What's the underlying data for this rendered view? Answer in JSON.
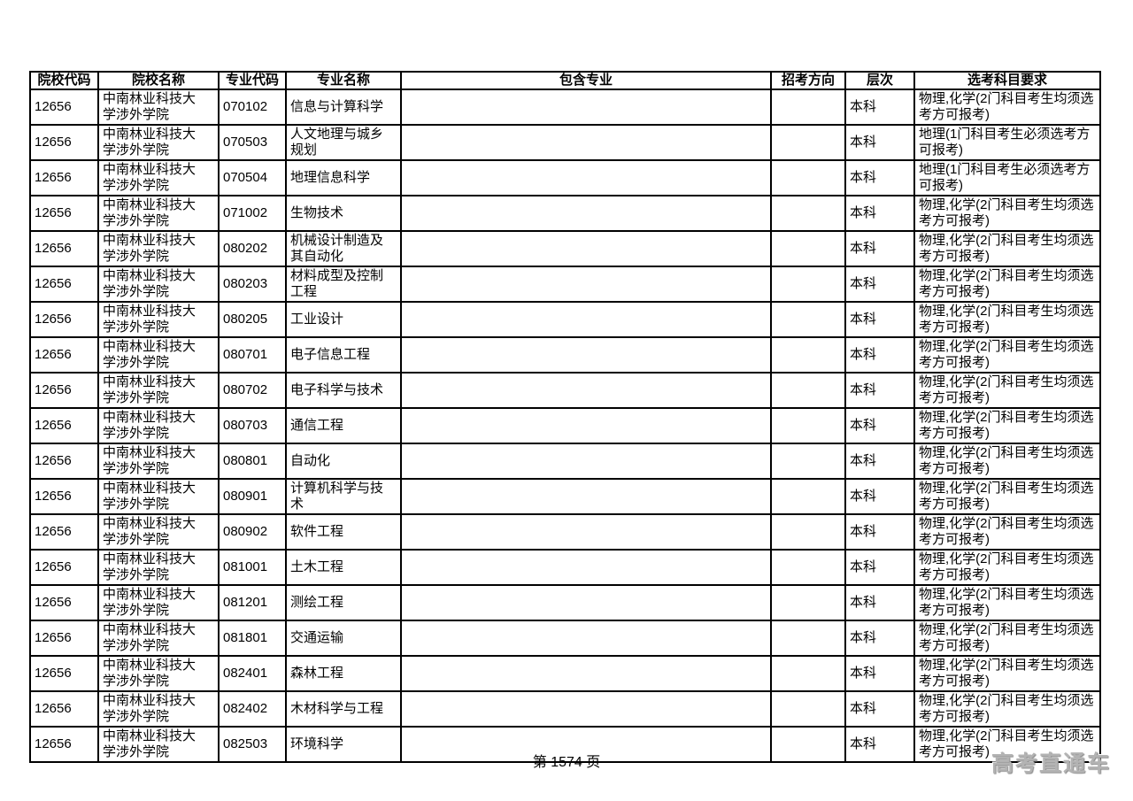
{
  "page": {
    "footer_page_label": "第 1574 页",
    "watermark": {
      "text": "高考直通车",
      "color": "#b3b3b3"
    }
  },
  "table": {
    "headers": [
      "院校代码",
      "院校名称",
      "专业代码",
      "专业名称",
      "包含专业",
      "招考方向",
      "层次",
      "选考科目要求"
    ],
    "rows": [
      {
        "college_code": "12656",
        "college_name": "中南林业科技大学涉外学院",
        "major_code": "070102",
        "major_name": "信息与计算科学",
        "included_majors": "",
        "admission_direction": "",
        "level": "本科",
        "subject_requirements": "物理,化学(2门科目考生均须选考方可报考)"
      },
      {
        "college_code": "12656",
        "college_name": "中南林业科技大学涉外学院",
        "major_code": "070503",
        "major_name": "人文地理与城乡规划",
        "included_majors": "",
        "admission_direction": "",
        "level": "本科",
        "subject_requirements": "地理(1门科目考生必须选考方可报考)"
      },
      {
        "college_code": "12656",
        "college_name": "中南林业科技大学涉外学院",
        "major_code": "070504",
        "major_name": "地理信息科学",
        "included_majors": "",
        "admission_direction": "",
        "level": "本科",
        "subject_requirements": "地理(1门科目考生必须选考方可报考)"
      },
      {
        "college_code": "12656",
        "college_name": "中南林业科技大学涉外学院",
        "major_code": "071002",
        "major_name": "生物技术",
        "included_majors": "",
        "admission_direction": "",
        "level": "本科",
        "subject_requirements": "物理,化学(2门科目考生均须选考方可报考)"
      },
      {
        "college_code": "12656",
        "college_name": "中南林业科技大学涉外学院",
        "major_code": "080202",
        "major_name": "机械设计制造及其自动化",
        "included_majors": "",
        "admission_direction": "",
        "level": "本科",
        "subject_requirements": "物理,化学(2门科目考生均须选考方可报考)"
      },
      {
        "college_code": "12656",
        "college_name": "中南林业科技大学涉外学院",
        "major_code": "080203",
        "major_name": "材料成型及控制工程",
        "included_majors": "",
        "admission_direction": "",
        "level": "本科",
        "subject_requirements": "物理,化学(2门科目考生均须选考方可报考)"
      },
      {
        "college_code": "12656",
        "college_name": "中南林业科技大学涉外学院",
        "major_code": "080205",
        "major_name": "工业设计",
        "included_majors": "",
        "admission_direction": "",
        "level": "本科",
        "subject_requirements": "物理,化学(2门科目考生均须选考方可报考)"
      },
      {
        "college_code": "12656",
        "college_name": "中南林业科技大学涉外学院",
        "major_code": "080701",
        "major_name": "电子信息工程",
        "included_majors": "",
        "admission_direction": "",
        "level": "本科",
        "subject_requirements": "物理,化学(2门科目考生均须选考方可报考)"
      },
      {
        "college_code": "12656",
        "college_name": "中南林业科技大学涉外学院",
        "major_code": "080702",
        "major_name": "电子科学与技术",
        "included_majors": "",
        "admission_direction": "",
        "level": "本科",
        "subject_requirements": "物理,化学(2门科目考生均须选考方可报考)"
      },
      {
        "college_code": "12656",
        "college_name": "中南林业科技大学涉外学院",
        "major_code": "080703",
        "major_name": "通信工程",
        "included_majors": "",
        "admission_direction": "",
        "level": "本科",
        "subject_requirements": "物理,化学(2门科目考生均须选考方可报考)"
      },
      {
        "college_code": "12656",
        "college_name": "中南林业科技大学涉外学院",
        "major_code": "080801",
        "major_name": "自动化",
        "included_majors": "",
        "admission_direction": "",
        "level": "本科",
        "subject_requirements": "物理,化学(2门科目考生均须选考方可报考)"
      },
      {
        "college_code": "12656",
        "college_name": "中南林业科技大学涉外学院",
        "major_code": "080901",
        "major_name": "计算机科学与技术",
        "included_majors": "",
        "admission_direction": "",
        "level": "本科",
        "subject_requirements": "物理,化学(2门科目考生均须选考方可报考)"
      },
      {
        "college_code": "12656",
        "college_name": "中南林业科技大学涉外学院",
        "major_code": "080902",
        "major_name": "软件工程",
        "included_majors": "",
        "admission_direction": "",
        "level": "本科",
        "subject_requirements": "物理,化学(2门科目考生均须选考方可报考)"
      },
      {
        "college_code": "12656",
        "college_name": "中南林业科技大学涉外学院",
        "major_code": "081001",
        "major_name": "土木工程",
        "included_majors": "",
        "admission_direction": "",
        "level": "本科",
        "subject_requirements": "物理,化学(2门科目考生均须选考方可报考)"
      },
      {
        "college_code": "12656",
        "college_name": "中南林业科技大学涉外学院",
        "major_code": "081201",
        "major_name": "测绘工程",
        "included_majors": "",
        "admission_direction": "",
        "level": "本科",
        "subject_requirements": "物理,化学(2门科目考生均须选考方可报考)"
      },
      {
        "college_code": "12656",
        "college_name": "中南林业科技大学涉外学院",
        "major_code": "081801",
        "major_name": "交通运输",
        "included_majors": "",
        "admission_direction": "",
        "level": "本科",
        "subject_requirements": "物理,化学(2门科目考生均须选考方可报考)"
      },
      {
        "college_code": "12656",
        "college_name": "中南林业科技大学涉外学院",
        "major_code": "082401",
        "major_name": "森林工程",
        "included_majors": "",
        "admission_direction": "",
        "level": "本科",
        "subject_requirements": "物理,化学(2门科目考生均须选考方可报考)"
      },
      {
        "college_code": "12656",
        "college_name": "中南林业科技大学涉外学院",
        "major_code": "082402",
        "major_name": "木材科学与工程",
        "included_majors": "",
        "admission_direction": "",
        "level": "本科",
        "subject_requirements": "物理,化学(2门科目考生均须选考方可报考)"
      },
      {
        "college_code": "12656",
        "college_name": "中南林业科技大学涉外学院",
        "major_code": "082503",
        "major_name": "环境科学",
        "included_majors": "",
        "admission_direction": "",
        "level": "本科",
        "subject_requirements": "物理,化学(2门科目考生均须选考方可报考)"
      }
    ]
  }
}
